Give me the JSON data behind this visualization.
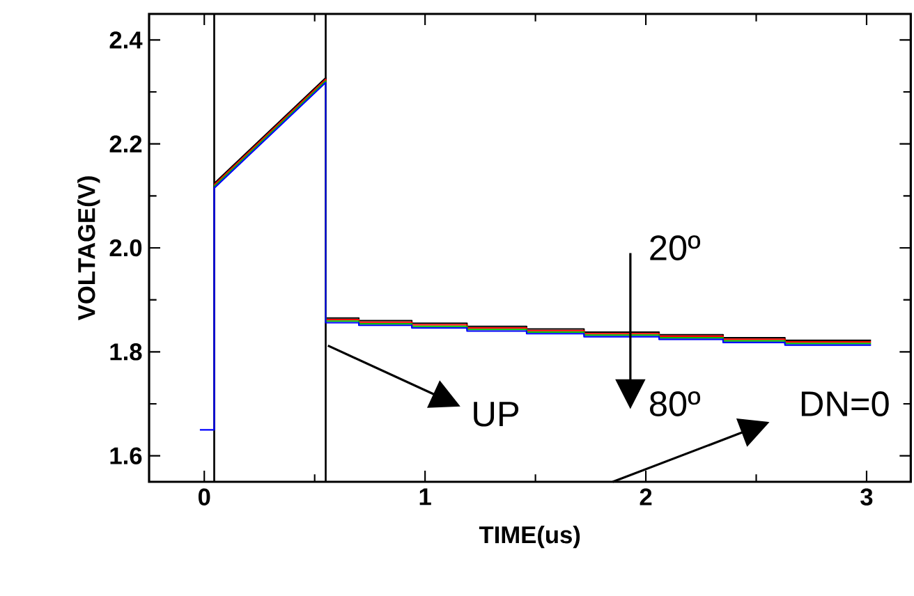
{
  "chart_data": {
    "type": "line",
    "xlabel": "TIME(us)",
    "ylabel": "VOLTAGE(V)",
    "xlim": [
      -0.25,
      3.2
    ],
    "ylim": [
      1.55,
      2.45
    ],
    "xticks": [
      0,
      {
        "value": 0.5,
        "label": null
      },
      1,
      {
        "value": 1.5,
        "label": null
      },
      2,
      {
        "value": 2.5,
        "label": null
      },
      3
    ],
    "yticks": [
      1.6,
      {
        "value": 1.7,
        "label": null
      },
      1.8,
      {
        "value": 1.9,
        "label": null
      },
      {
        "value": 2,
        "label": "2.0"
      },
      {
        "value": 2.1,
        "label": null
      },
      2.2,
      {
        "value": 2.3,
        "label": null
      },
      2.4
    ],
    "x": [
      -0.02,
      0.045,
      0.045,
      0.55,
      0.55,
      0.7,
      0.7,
      0.94,
      0.94,
      1.19,
      1.19,
      1.46,
      1.46,
      1.72,
      1.72,
      2.06,
      2.06,
      2.35,
      2.35,
      2.63,
      2.63,
      3.02
    ],
    "series": [
      {
        "color": "#000000",
        "values": [
          null,
          null,
          2.124,
          2.327,
          1.865,
          1.865,
          1.86,
          1.86,
          1.855,
          1.855,
          1.849,
          1.849,
          1.844,
          1.844,
          1.838,
          1.838,
          1.833,
          1.833,
          1.827,
          1.827,
          1.822,
          1.822
        ]
      },
      {
        "color": "#ff0000",
        "values": [
          null,
          null,
          2.121,
          2.324,
          1.862,
          1.862,
          1.857,
          1.857,
          1.852,
          1.852,
          1.846,
          1.846,
          1.841,
          1.841,
          1.835,
          1.835,
          1.83,
          1.83,
          1.824,
          1.824,
          1.819,
          1.819
        ]
      },
      {
        "color": "#00c000",
        "values": [
          null,
          null,
          2.118,
          2.321,
          1.859,
          1.859,
          1.854,
          1.854,
          1.849,
          1.849,
          1.843,
          1.843,
          1.838,
          1.838,
          1.832,
          1.832,
          1.827,
          1.827,
          1.821,
          1.821,
          1.816,
          1.816
        ]
      },
      {
        "color": "#0000ff",
        "values": [
          1.65,
          1.65,
          2.115,
          2.318,
          1.856,
          1.856,
          1.851,
          1.851,
          1.846,
          1.846,
          1.84,
          1.84,
          1.835,
          1.835,
          1.829,
          1.829,
          1.824,
          1.824,
          1.818,
          1.818,
          1.813,
          1.813
        ]
      }
    ],
    "ref_lines": [
      {
        "axis": "x",
        "value": 0.045,
        "color": "#000000"
      },
      {
        "axis": "x",
        "value": 0.55,
        "color": "#000000"
      }
    ],
    "annotations": [
      "20º",
      "80º",
      {
        "text": "UP",
        "x": 0.56,
        "y": 1.812
      },
      "DN=0"
    ]
  }
}
